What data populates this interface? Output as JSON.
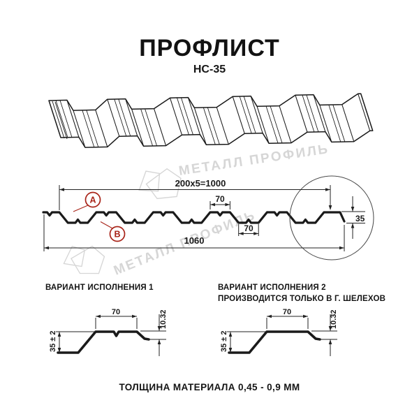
{
  "header": {
    "title": "ПРОФЛИСТ",
    "subtitle": "НС-35"
  },
  "watermark": {
    "text": "МЕТАЛЛ ПРОФИЛЬ",
    "color": "#d6d6d6"
  },
  "colors": {
    "line": "#1a1a1a",
    "dim": "#222222",
    "marker": "#a82318",
    "detail_circle": "#454545"
  },
  "cross_section": {
    "dim_module": "200x5=1000",
    "dim_overall_width": "1060",
    "dim_crest_top": "70",
    "dim_trough_bottom": "70",
    "dim_height": "35",
    "marker_a": "A",
    "marker_b": "B"
  },
  "variant1": {
    "title": "ВАРИАНТ ИСПОЛНЕНИЯ 1",
    "dim_width": "70",
    "dim_lip": "10.32",
    "dim_height": "35 ± 2"
  },
  "variant2": {
    "title": "ВАРИАНТ ИСПОЛНЕНИЯ 2",
    "subtitle": "ПРОИЗВОДИТСЯ ТОЛЬКО В Г. ШЕЛЕХОВ",
    "dim_width": "70",
    "dim_lip": "10.32",
    "dim_height": "35 ± 2"
  },
  "footer": {
    "thickness_note": "ТОЛЩИНА МАТЕРИАЛА 0,45 - 0,9 ММ"
  }
}
